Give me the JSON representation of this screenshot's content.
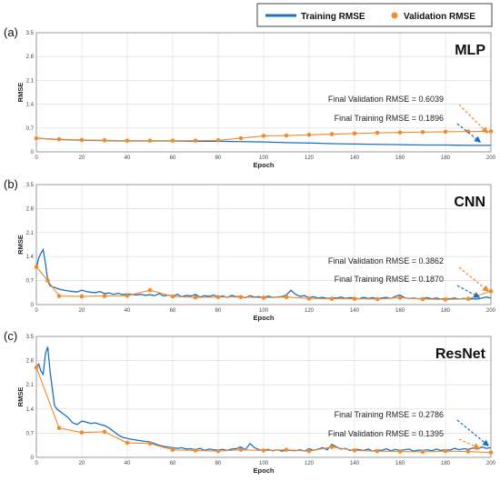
{
  "colors": {
    "training": "#1f6fbf",
    "validation": "#f28a2e"
  },
  "legend": {
    "training": "Training RMSE",
    "validation": "Validation RMSE"
  },
  "chart_data": [
    {
      "type": "line",
      "panel": "(a)",
      "title": "MLP",
      "xlabel": "Epoch",
      "ylabel": "RMSE",
      "xlim": [
        0,
        200
      ],
      "ylim": [
        0,
        3.5
      ],
      "xticks": [
        "0",
        "20",
        "40",
        "60",
        "80",
        "100",
        "120",
        "140",
        "160",
        "180",
        "200"
      ],
      "yticks": [
        "0",
        "0.7",
        "1.4",
        "2.1",
        "2.8",
        "3.5"
      ],
      "grid": true,
      "series": [
        {
          "name": "Training RMSE",
          "x": [
            0,
            5,
            10,
            20,
            30,
            40,
            50,
            60,
            70,
            80,
            90,
            100,
            110,
            120,
            130,
            140,
            150,
            160,
            170,
            180,
            190,
            200
          ],
          "y": [
            0.4,
            0.38,
            0.36,
            0.34,
            0.33,
            0.32,
            0.32,
            0.32,
            0.31,
            0.31,
            0.3,
            0.29,
            0.27,
            0.26,
            0.24,
            0.23,
            0.22,
            0.21,
            0.2,
            0.2,
            0.19,
            0.19
          ]
        },
        {
          "name": "Validation RMSE",
          "x": [
            0,
            10,
            20,
            30,
            40,
            50,
            60,
            70,
            80,
            90,
            100,
            110,
            120,
            130,
            140,
            150,
            160,
            170,
            180,
            190,
            200
          ],
          "y": [
            0.4,
            0.37,
            0.35,
            0.34,
            0.33,
            0.33,
            0.33,
            0.33,
            0.34,
            0.4,
            0.47,
            0.48,
            0.5,
            0.52,
            0.54,
            0.56,
            0.57,
            0.58,
            0.59,
            0.6,
            0.6
          ]
        }
      ],
      "annotations": [
        "Final Validation RMSE = 0.6039",
        "Final Training RMSE = 0.1896"
      ]
    },
    {
      "type": "line",
      "panel": "(b)",
      "title": "CNN",
      "xlabel": "Epoch",
      "ylabel": "RMSE",
      "xlim": [
        0,
        200
      ],
      "ylim": [
        0,
        3.5
      ],
      "xticks": [
        "0",
        "20",
        "40",
        "60",
        "80",
        "100",
        "120",
        "140",
        "160",
        "180",
        "200"
      ],
      "yticks": [
        "0",
        "0.7",
        "1.4",
        "2.1",
        "2.8",
        "3.5"
      ],
      "grid": true,
      "series": [
        {
          "name": "Training RMSE",
          "x": [
            0,
            1,
            2,
            3,
            4,
            5,
            6,
            7,
            8,
            10,
            12,
            14,
            16,
            18,
            20,
            22,
            24,
            26,
            28,
            30,
            32,
            34,
            36,
            38,
            40,
            42,
            44,
            46,
            48,
            50,
            52,
            54,
            56,
            58,
            60,
            62,
            64,
            66,
            68,
            70,
            72,
            74,
            76,
            78,
            80,
            82,
            84,
            86,
            88,
            90,
            92,
            94,
            96,
            98,
            100,
            102,
            104,
            106,
            108,
            110,
            112,
            114,
            116,
            118,
            120,
            122,
            124,
            126,
            128,
            130,
            132,
            134,
            136,
            138,
            140,
            142,
            144,
            146,
            148,
            150,
            152,
            154,
            156,
            158,
            160,
            162,
            164,
            166,
            168,
            170,
            172,
            174,
            176,
            178,
            180,
            182,
            184,
            186,
            188,
            190,
            192,
            194,
            196,
            198,
            200
          ],
          "y": [
            1.05,
            1.35,
            1.5,
            1.6,
            1.2,
            0.7,
            0.55,
            0.52,
            0.5,
            0.45,
            0.42,
            0.4,
            0.38,
            0.37,
            0.42,
            0.38,
            0.36,
            0.35,
            0.38,
            0.32,
            0.34,
            0.3,
            0.33,
            0.29,
            0.31,
            0.3,
            0.28,
            0.3,
            0.27,
            0.29,
            0.26,
            0.32,
            0.25,
            0.28,
            0.24,
            0.3,
            0.23,
            0.27,
            0.25,
            0.3,
            0.22,
            0.26,
            0.24,
            0.28,
            0.22,
            0.25,
            0.21,
            0.27,
            0.23,
            0.24,
            0.2,
            0.26,
            0.22,
            0.23,
            0.2,
            0.25,
            0.21,
            0.22,
            0.23,
            0.28,
            0.42,
            0.3,
            0.24,
            0.26,
            0.2,
            0.23,
            0.19,
            0.21,
            0.18,
            0.2,
            0.19,
            0.22,
            0.18,
            0.2,
            0.19,
            0.17,
            0.21,
            0.18,
            0.2,
            0.17,
            0.19,
            0.21,
            0.18,
            0.24,
            0.28,
            0.2,
            0.18,
            0.19,
            0.17,
            0.18,
            0.2,
            0.17,
            0.19,
            0.16,
            0.18,
            0.17,
            0.19,
            0.16,
            0.18,
            0.15,
            0.17,
            0.16,
            0.19,
            0.22,
            0.19
          ]
        },
        {
          "name": "Validation RMSE",
          "x": [
            0,
            5,
            10,
            20,
            30,
            40,
            50,
            60,
            70,
            80,
            90,
            100,
            110,
            120,
            130,
            140,
            150,
            160,
            170,
            180,
            190,
            200
          ],
          "y": [
            1.1,
            0.7,
            0.25,
            0.24,
            0.25,
            0.26,
            0.42,
            0.24,
            0.21,
            0.22,
            0.22,
            0.2,
            0.22,
            0.18,
            0.17,
            0.17,
            0.16,
            0.2,
            0.16,
            0.15,
            0.17,
            0.39
          ]
        }
      ],
      "annotations": [
        "Final Validation RMSE = 0.3862",
        "Final Training RMSE = 0.1870"
      ]
    },
    {
      "type": "line",
      "panel": "(c)",
      "title": "ResNet",
      "xlabel": "Epoch",
      "ylabel": "RMSE",
      "xlim": [
        0,
        200
      ],
      "ylim": [
        0,
        3.5
      ],
      "xticks": [
        "0",
        "20",
        "40",
        "60",
        "80",
        "100",
        "120",
        "140",
        "160",
        "180",
        "200"
      ],
      "yticks": [
        "0",
        "0.7",
        "1.4",
        "2.1",
        "2.8",
        "3.5"
      ],
      "grid": true,
      "series": [
        {
          "name": "Training RMSE",
          "x": [
            0,
            1,
            2,
            3,
            4,
            5,
            6,
            7,
            8,
            9,
            10,
            12,
            14,
            16,
            18,
            20,
            22,
            24,
            26,
            28,
            30,
            32,
            34,
            36,
            38,
            40,
            42,
            44,
            46,
            48,
            50,
            52,
            54,
            56,
            58,
            60,
            62,
            64,
            66,
            68,
            70,
            72,
            74,
            76,
            78,
            80,
            82,
            84,
            86,
            88,
            90,
            92,
            94,
            96,
            98,
            100,
            102,
            104,
            106,
            108,
            110,
            112,
            114,
            116,
            118,
            120,
            122,
            124,
            126,
            128,
            130,
            132,
            134,
            136,
            138,
            140,
            142,
            144,
            146,
            148,
            150,
            152,
            154,
            156,
            158,
            160,
            162,
            164,
            166,
            168,
            170,
            172,
            174,
            176,
            178,
            180,
            182,
            184,
            186,
            188,
            190,
            192,
            194,
            196,
            198,
            200
          ],
          "y": [
            2.6,
            2.7,
            2.5,
            2.4,
            3.0,
            3.2,
            2.5,
            2.0,
            1.5,
            1.4,
            1.35,
            1.25,
            1.15,
            1.0,
            0.95,
            1.05,
            1.02,
            0.98,
            1.0,
            0.95,
            0.92,
            0.85,
            0.75,
            0.65,
            0.58,
            0.55,
            0.52,
            0.5,
            0.48,
            0.46,
            0.45,
            0.4,
            0.35,
            0.32,
            0.3,
            0.28,
            0.26,
            0.28,
            0.24,
            0.25,
            0.22,
            0.26,
            0.2,
            0.24,
            0.22,
            0.21,
            0.23,
            0.2,
            0.24,
            0.25,
            0.3,
            0.22,
            0.4,
            0.28,
            0.22,
            0.2,
            0.23,
            0.19,
            0.22,
            0.18,
            0.21,
            0.2,
            0.19,
            0.22,
            0.18,
            0.25,
            0.2,
            0.24,
            0.28,
            0.22,
            0.38,
            0.3,
            0.24,
            0.26,
            0.2,
            0.24,
            0.22,
            0.2,
            0.24,
            0.18,
            0.22,
            0.2,
            0.25,
            0.19,
            0.23,
            0.2,
            0.22,
            0.24,
            0.18,
            0.21,
            0.2,
            0.22,
            0.19,
            0.24,
            0.2,
            0.22,
            0.21,
            0.26,
            0.22,
            0.25,
            0.23,
            0.27,
            0.24,
            0.3,
            0.26,
            0.28
          ]
        },
        {
          "name": "Validation RMSE",
          "x": [
            0,
            10,
            20,
            30,
            40,
            50,
            60,
            70,
            80,
            90,
            100,
            110,
            120,
            130,
            140,
            150,
            160,
            170,
            180,
            190,
            200
          ],
          "y": [
            2.6,
            0.85,
            0.72,
            0.74,
            0.42,
            0.4,
            0.22,
            0.2,
            0.18,
            0.22,
            0.2,
            0.22,
            0.18,
            0.3,
            0.2,
            0.18,
            0.17,
            0.16,
            0.18,
            0.17,
            0.14
          ]
        }
      ],
      "annotations": [
        "Final Training RMSE = 0.2786",
        "Final Validation RMSE = 0.1395"
      ]
    }
  ]
}
